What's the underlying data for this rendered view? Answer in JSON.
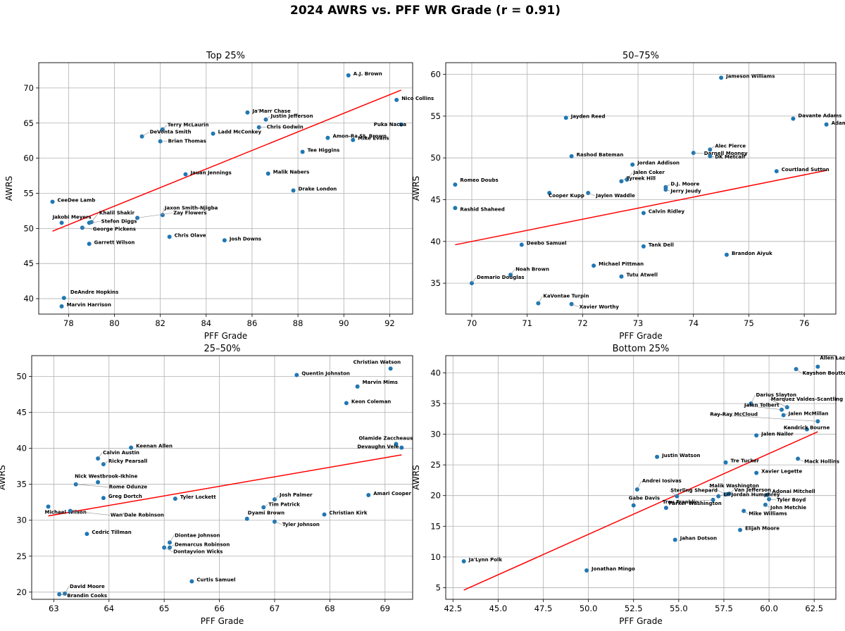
{
  "figure": {
    "title": "2024 AWRS vs. PFF WR Grade (r = 0.91)"
  },
  "chart_data": [
    {
      "type": "scatter",
      "title": "Top 25%",
      "xlabel": "PFF Grade",
      "ylabel": "AWRS",
      "xlim": [
        76.7,
        93.0
      ],
      "ylim": [
        37.8,
        73.6
      ],
      "xticks": [
        78,
        80,
        82,
        84,
        86,
        88,
        90,
        92
      ],
      "yticks": [
        40,
        45,
        50,
        55,
        60,
        65,
        70
      ],
      "grid": true,
      "marker_color": "#1f77b4",
      "trend_color": "#ff0000",
      "trendline": {
        "x": [
          77.3,
          92.5
        ],
        "y": [
          49.6,
          69.7
        ]
      },
      "points": [
        {
          "name": "A.J. Brown",
          "x": 90.2,
          "y": 71.8
        },
        {
          "name": "Nico Collins",
          "x": 92.3,
          "y": 68.3
        },
        {
          "name": "Puka Nacua",
          "x": 92.5,
          "y": 64.8
        },
        {
          "name": "Ja'Marr Chase",
          "x": 85.8,
          "y": 66.5
        },
        {
          "name": "Justin Jefferson",
          "x": 86.6,
          "y": 65.5
        },
        {
          "name": "Chris Godwin",
          "x": 86.3,
          "y": 64.4
        },
        {
          "name": "Terry McLaurin",
          "x": 82.1,
          "y": 64.1
        },
        {
          "name": "DeVonta Smith",
          "x": 81.2,
          "y": 63.1
        },
        {
          "name": "Brian Thomas",
          "x": 82.0,
          "y": 62.4
        },
        {
          "name": "Ladd McConkey",
          "x": 84.3,
          "y": 63.5
        },
        {
          "name": "Amon-Ra St. Brown",
          "x": 89.3,
          "y": 62.9
        },
        {
          "name": "Mike Evans",
          "x": 90.4,
          "y": 62.6
        },
        {
          "name": "Tee Higgins",
          "x": 88.2,
          "y": 60.9
        },
        {
          "name": "Malik Nabers",
          "x": 86.7,
          "y": 57.8
        },
        {
          "name": "Jauan Jennings",
          "x": 83.1,
          "y": 57.7
        },
        {
          "name": "Drake London",
          "x": 87.8,
          "y": 55.4
        },
        {
          "name": "CeeDee Lamb",
          "x": 77.3,
          "y": 53.8
        },
        {
          "name": "Jaxon Smith-Njigba",
          "x": 82.1,
          "y": 51.9
        },
        {
          "name": "Zay Flowers",
          "x": 81.0,
          "y": 51.5
        },
        {
          "name": "Khalil Shakir",
          "x": 79.0,
          "y": 50.9
        },
        {
          "name": "Stefon Diggs",
          "x": 78.9,
          "y": 50.8
        },
        {
          "name": "Jakobi Meyers",
          "x": 77.7,
          "y": 50.8
        },
        {
          "name": "George Pickens",
          "x": 78.6,
          "y": 50.1
        },
        {
          "name": "Chris Olave",
          "x": 82.4,
          "y": 48.8
        },
        {
          "name": "Josh Downs",
          "x": 84.8,
          "y": 48.3
        },
        {
          "name": "Garrett Wilson",
          "x": 78.9,
          "y": 47.8
        },
        {
          "name": "DeAndre Hopkins",
          "x": 77.8,
          "y": 40.1
        },
        {
          "name": "Marvin Harrison",
          "x": 77.7,
          "y": 38.9
        }
      ]
    },
    {
      "type": "scatter",
      "title": "50–75%",
      "xlabel": "PFF Grade",
      "ylabel": "AWRS",
      "xlim": [
        69.53,
        76.57
      ],
      "ylim": [
        31.3,
        61.4
      ],
      "xticks": [
        70,
        71,
        72,
        73,
        74,
        75,
        76
      ],
      "yticks": [
        35,
        40,
        45,
        50,
        55,
        60
      ],
      "grid": true,
      "marker_color": "#1f77b4",
      "trend_color": "#ff0000",
      "trendline": {
        "x": [
          69.7,
          76.4
        ],
        "y": [
          39.6,
          48.5
        ]
      },
      "points": [
        {
          "name": "Jameson Williams",
          "x": 74.5,
          "y": 59.6
        },
        {
          "name": "Davante Adams",
          "x": 75.8,
          "y": 54.7
        },
        {
          "name": "Adam Thielen",
          "x": 76.4,
          "y": 54.0
        },
        {
          "name": "Jayden Reed",
          "x": 71.7,
          "y": 54.8
        },
        {
          "name": "Alec Pierce",
          "x": 74.3,
          "y": 51.0
        },
        {
          "name": "Darnell Mooney",
          "x": 74.0,
          "y": 50.6
        },
        {
          "name": "DK Metcalf",
          "x": 74.3,
          "y": 50.2
        },
        {
          "name": "Rashod Bateman",
          "x": 71.8,
          "y": 50.2
        },
        {
          "name": "Jordan Addison",
          "x": 72.9,
          "y": 49.2
        },
        {
          "name": "Courtland Sutton",
          "x": 75.5,
          "y": 48.4
        },
        {
          "name": "Jalen Coker",
          "x": 72.8,
          "y": 47.4
        },
        {
          "name": "Tyreek Hill",
          "x": 72.7,
          "y": 47.2
        },
        {
          "name": "Romeo Doubs",
          "x": 69.7,
          "y": 46.8
        },
        {
          "name": "D.J. Moore",
          "x": 73.5,
          "y": 46.5
        },
        {
          "name": "Jerry Jeudy",
          "x": 73.5,
          "y": 46.2
        },
        {
          "name": "Cooper Kupp",
          "x": 71.4,
          "y": 45.8
        },
        {
          "name": "Jaylen Waddle",
          "x": 72.1,
          "y": 45.8
        },
        {
          "name": "Rashid Shaheed",
          "x": 69.7,
          "y": 44.0
        },
        {
          "name": "Calvin Ridley",
          "x": 73.1,
          "y": 43.4
        },
        {
          "name": "Deebo Samuel",
          "x": 70.9,
          "y": 39.6
        },
        {
          "name": "Tank Dell",
          "x": 73.1,
          "y": 39.4
        },
        {
          "name": "Brandon Aiyuk",
          "x": 74.6,
          "y": 38.4
        },
        {
          "name": "Michael Pittman",
          "x": 72.2,
          "y": 37.1
        },
        {
          "name": "Noah Brown",
          "x": 70.7,
          "y": 36.0
        },
        {
          "name": "Tutu Atwell",
          "x": 72.7,
          "y": 35.8
        },
        {
          "name": "Demario Douglas",
          "x": 70.0,
          "y": 35.0
        },
        {
          "name": "KaVontae Turpin",
          "x": 71.2,
          "y": 32.6
        },
        {
          "name": "Xavier Worthy",
          "x": 71.8,
          "y": 32.5
        }
      ]
    },
    {
      "type": "scatter",
      "title": "25–50%",
      "xlabel": "PFF Grade",
      "ylabel": "AWRS",
      "xlim": [
        62.6,
        69.5
      ],
      "ylim": [
        19.0,
        52.9
      ],
      "xticks": [
        63,
        64,
        65,
        66,
        67,
        68,
        69
      ],
      "yticks": [
        20,
        25,
        30,
        35,
        40,
        45,
        50
      ],
      "grid": true,
      "marker_color": "#1f77b4",
      "trend_color": "#ff0000",
      "trendline": {
        "x": [
          62.9,
          69.3
        ],
        "y": [
          30.6,
          39.1
        ]
      },
      "points": [
        {
          "name": "Christian Watson",
          "x": 69.1,
          "y": 51.1
        },
        {
          "name": "Quentin Johnston",
          "x": 67.4,
          "y": 50.2
        },
        {
          "name": "Marvin Mims",
          "x": 68.5,
          "y": 48.6
        },
        {
          "name": "Keon Coleman",
          "x": 68.3,
          "y": 46.3
        },
        {
          "name": "Olamide Zaccheaus",
          "x": 69.2,
          "y": 40.6
        },
        {
          "name": "Devaughn Vele",
          "x": 69.3,
          "y": 40.1
        },
        {
          "name": "Keenan Allen",
          "x": 64.4,
          "y": 40.1
        },
        {
          "name": "Calvin Austin",
          "x": 63.8,
          "y": 38.6
        },
        {
          "name": "Ricky Pearsall",
          "x": 63.9,
          "y": 37.8
        },
        {
          "name": "Nick Westbrook-Ikhine",
          "x": 63.8,
          "y": 35.3
        },
        {
          "name": "Rome Odunze",
          "x": 63.4,
          "y": 35.0
        },
        {
          "name": "Amari Cooper",
          "x": 68.7,
          "y": 33.5
        },
        {
          "name": "Greg Dortch",
          "x": 63.9,
          "y": 33.1
        },
        {
          "name": "Tyler Lockett",
          "x": 65.2,
          "y": 33.0
        },
        {
          "name": "Josh Palmer",
          "x": 67.0,
          "y": 32.9
        },
        {
          "name": "Tim Patrick",
          "x": 66.8,
          "y": 31.8
        },
        {
          "name": "Michael Wilson",
          "x": 62.9,
          "y": 31.9
        },
        {
          "name": "Wan'Dale Robinson",
          "x": 63.3,
          "y": 31.3
        },
        {
          "name": "Christian Kirk",
          "x": 67.9,
          "y": 30.8
        },
        {
          "name": "Dyami Brown",
          "x": 66.5,
          "y": 30.2
        },
        {
          "name": "Tyler Johnson",
          "x": 67.0,
          "y": 29.8
        },
        {
          "name": "Cedric Tillman",
          "x": 63.6,
          "y": 28.1
        },
        {
          "name": "Diontae Johnson",
          "x": 65.1,
          "y": 26.9
        },
        {
          "name": "Demarcus Robinson",
          "x": 65.1,
          "y": 26.2
        },
        {
          "name": "Dontayvion Wicks",
          "x": 65.0,
          "y": 26.2
        },
        {
          "name": "Curtis Samuel",
          "x": 65.5,
          "y": 21.5
        },
        {
          "name": "David Moore",
          "x": 63.2,
          "y": 19.8
        },
        {
          "name": "Brandin Cooks",
          "x": 63.1,
          "y": 19.7
        }
      ]
    },
    {
      "type": "scatter",
      "title": "Bottom 25%",
      "xlabel": "PFF Grade",
      "ylabel": "AWRS",
      "xlim": [
        42.1,
        63.7
      ],
      "ylim": [
        3.1,
        42.8
      ],
      "xticks": [
        42.5,
        45.0,
        47.5,
        50.0,
        52.5,
        55.0,
        57.5,
        60.0,
        62.5
      ],
      "yticks": [
        5,
        10,
        15,
        20,
        25,
        30,
        35,
        40
      ],
      "grid": true,
      "marker_color": "#1f77b4",
      "trend_color": "#ff0000",
      "trendline": {
        "x": [
          43.1,
          62.7
        ],
        "y": [
          4.6,
          30.4
        ]
      },
      "points": [
        {
          "name": "Allen Lazard",
          "x": 62.7,
          "y": 41.0
        },
        {
          "name": "Kayshon Boutte",
          "x": 61.5,
          "y": 40.6
        },
        {
          "name": "Darius Slayton",
          "x": 59.0,
          "y": 35.0
        },
        {
          "name": "Marquez Valdes-Scantling",
          "x": 61.0,
          "y": 34.4
        },
        {
          "name": "Jalen Tolbert",
          "x": 60.7,
          "y": 34.0
        },
        {
          "name": "Jalen McMillan",
          "x": 60.8,
          "y": 33.1
        },
        {
          "name": "Ray-Ray McCloud",
          "x": 62.7,
          "y": 32.1
        },
        {
          "name": "Kendrick Bourne",
          "x": 62.1,
          "y": 30.8
        },
        {
          "name": "Jalen Nailor",
          "x": 59.3,
          "y": 29.8
        },
        {
          "name": "Justin Watson",
          "x": 53.8,
          "y": 26.3
        },
        {
          "name": "Mack Hollins",
          "x": 61.6,
          "y": 26.0
        },
        {
          "name": "Tre Tucker",
          "x": 57.6,
          "y": 25.4
        },
        {
          "name": "Xavier Legette",
          "x": 59.3,
          "y": 23.7
        },
        {
          "name": "Andrei Iosivas",
          "x": 52.7,
          "y": 21.0
        },
        {
          "name": "Malik Washington",
          "x": 57.6,
          "y": 20.2
        },
        {
          "name": "Van Jefferson",
          "x": 57.8,
          "y": 20.3
        },
        {
          "name": "Adonai Mitchell",
          "x": 59.9,
          "y": 20.1
        },
        {
          "name": "Sterling Shepard",
          "x": 54.9,
          "y": 19.9
        },
        {
          "name": "Lil'Jordan Humphrey",
          "x": 57.2,
          "y": 19.9
        },
        {
          "name": "Tyler Boyd",
          "x": 60.0,
          "y": 19.4
        },
        {
          "name": "Gabe Davis",
          "x": 52.5,
          "y": 18.4
        },
        {
          "name": "Troy Franklin",
          "x": 54.3,
          "y": 18.0
        },
        {
          "name": "Parker Washington",
          "x": 56.9,
          "y": 19.3
        },
        {
          "name": "John Metchie",
          "x": 59.8,
          "y": 18.5
        },
        {
          "name": "Mike Williams",
          "x": 58.6,
          "y": 17.5
        },
        {
          "name": "Elijah Moore",
          "x": 58.4,
          "y": 14.4
        },
        {
          "name": "Jahan Dotson",
          "x": 54.8,
          "y": 12.8
        },
        {
          "name": "Ja'Lynn Polk",
          "x": 43.1,
          "y": 9.3
        },
        {
          "name": "Jonathan Mingo",
          "x": 49.9,
          "y": 7.8
        }
      ]
    }
  ]
}
